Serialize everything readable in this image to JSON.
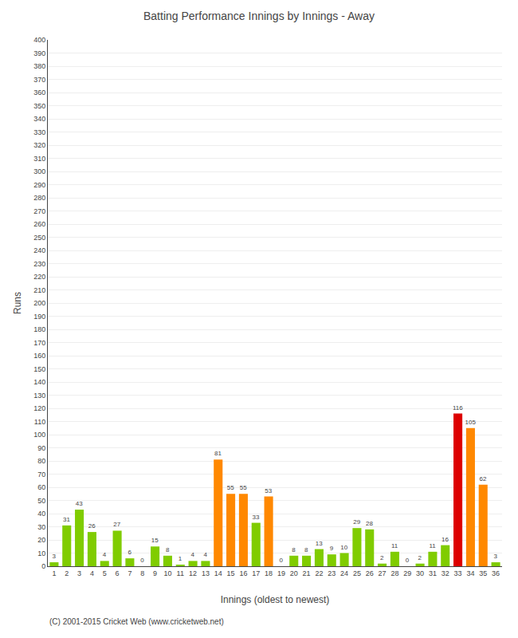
{
  "chart_data": {
    "type": "bar",
    "title": "Batting Performance Innings by Innings - Away",
    "xlabel": "Innings (oldest to newest)",
    "ylabel": "Runs",
    "annotations": [
      "(C) 2001-2015 Cricket Web (www.cricketweb.net)"
    ],
    "categories": [
      1,
      2,
      3,
      4,
      5,
      6,
      7,
      8,
      9,
      10,
      11,
      12,
      13,
      14,
      15,
      16,
      17,
      18,
      19,
      20,
      21,
      22,
      23,
      24,
      25,
      26,
      27,
      28,
      29,
      30,
      31,
      32,
      33,
      34,
      35,
      36
    ],
    "values": [
      3,
      31,
      43,
      26,
      4,
      27,
      6,
      0,
      15,
      8,
      1,
      4,
      4,
      81,
      55,
      55,
      33,
      53,
      0,
      8,
      8,
      13,
      9,
      10,
      29,
      28,
      2,
      11,
      0,
      2,
      11,
      16,
      116,
      105,
      62,
      3
    ],
    "colors": [
      "#80cc00",
      "#80cc00",
      "#80cc00",
      "#80cc00",
      "#80cc00",
      "#80cc00",
      "#80cc00",
      "#80cc00",
      "#80cc00",
      "#80cc00",
      "#80cc00",
      "#80cc00",
      "#80cc00",
      "#ff8800",
      "#ff8800",
      "#ff8800",
      "#80cc00",
      "#ff8800",
      "#80cc00",
      "#80cc00",
      "#80cc00",
      "#80cc00",
      "#80cc00",
      "#80cc00",
      "#80cc00",
      "#80cc00",
      "#80cc00",
      "#80cc00",
      "#80cc00",
      "#80cc00",
      "#80cc00",
      "#80cc00",
      "#dd0000",
      "#ff8800",
      "#ff8800",
      "#80cc00"
    ],
    "ylim": [
      0,
      400
    ],
    "yticks": [
      0,
      10,
      20,
      30,
      40,
      50,
      60,
      70,
      80,
      90,
      100,
      110,
      120,
      130,
      140,
      150,
      160,
      170,
      180,
      190,
      200,
      210,
      220,
      230,
      240,
      250,
      260,
      270,
      280,
      290,
      300,
      310,
      320,
      330,
      340,
      350,
      360,
      370,
      380,
      390,
      400
    ],
    "grid": true,
    "data_labels": true
  }
}
